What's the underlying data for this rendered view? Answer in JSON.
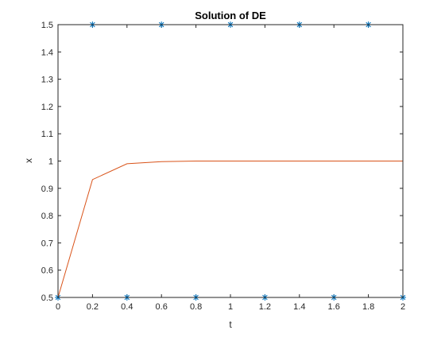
{
  "chart_data": {
    "type": "line",
    "title": "Solution of DE",
    "xlabel": "t",
    "ylabel": "x",
    "xlim": [
      0,
      2
    ],
    "ylim": [
      0.5,
      1.5
    ],
    "xticks": [
      0,
      0.2,
      0.4,
      0.6,
      0.8,
      1,
      1.2,
      1.4,
      1.6,
      1.8,
      2
    ],
    "xtick_labels": [
      "0",
      "0.2",
      "0.4",
      "0.6",
      "0.8",
      "1",
      "1.2",
      "1.4",
      "1.6",
      "1.8",
      "2"
    ],
    "yticks": [
      0.5,
      0.6,
      0.7,
      0.8,
      0.9,
      1,
      1.1,
      1.2,
      1.3,
      1.4,
      1.5
    ],
    "ytick_labels": [
      "0.5",
      "0.6",
      "0.7",
      "0.8",
      "0.9",
      "1",
      "1.1",
      "1.2",
      "1.3",
      "1.4",
      "1.5"
    ],
    "grid": false,
    "series": [
      {
        "style": "line",
        "color": "#d95319",
        "x": [
          0,
          0.2,
          0.4,
          0.6,
          0.8,
          1,
          1.2,
          1.4,
          1.6,
          1.8,
          2
        ],
        "y": [
          0.5,
          0.932,
          0.99,
          0.998,
          1.0,
          1.0,
          1.0,
          1.0,
          1.0,
          1.0,
          1.0
        ]
      },
      {
        "style": "markers",
        "marker": "asterisk",
        "color": "#0072bd",
        "x": [
          0,
          0.2,
          0.4,
          0.6,
          0.8,
          1,
          1.2,
          1.4,
          1.6,
          1.8,
          2
        ],
        "y": [
          0.5,
          1.5,
          0.5,
          1.5,
          0.5,
          1.5,
          0.5,
          1.5,
          0.5,
          1.5,
          0.5
        ]
      }
    ]
  }
}
